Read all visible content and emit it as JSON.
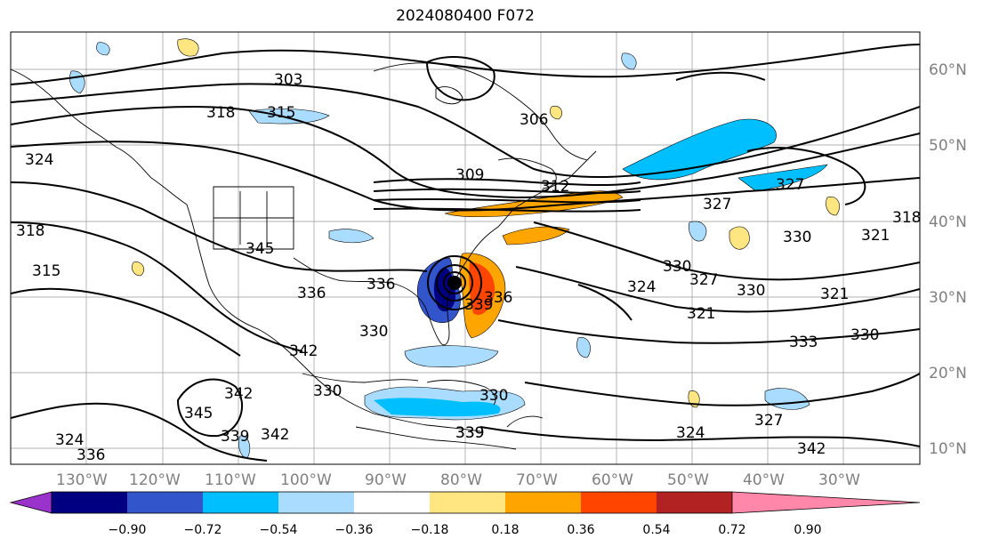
{
  "title": "2024080400 F072",
  "lat_labels": [
    "60°N",
    "50°N",
    "40°N",
    "30°N",
    "20°N",
    "10°N"
  ],
  "lon_labels": [
    "130°W",
    "120°W",
    "110°W",
    "100°W",
    "90°W",
    "80°W",
    "70°W",
    "60°W",
    "50°W",
    "40°W",
    "30°W"
  ],
  "contour_labels": [
    "303",
    "318",
    "315",
    "306",
    "309",
    "312",
    "327",
    "327",
    "318",
    "321",
    "324",
    "318",
    "315",
    "345",
    "336",
    "330",
    "330",
    "330",
    "324",
    "327",
    "339",
    "330",
    "321",
    "321",
    "333",
    "330",
    "342",
    "345",
    "342",
    "339",
    "342",
    "339",
    "336",
    "330",
    "327",
    "324",
    "342",
    "339",
    "336",
    "336",
    "330",
    "324"
  ],
  "colorbar": {
    "ticks": [
      "−0.90",
      "−0.72",
      "−0.54",
      "−0.36",
      "−0.18",
      "0.18",
      "0.36",
      "0.54",
      "0.72",
      "0.90"
    ],
    "colors": [
      "#9933cc",
      "#000080",
      "#3355cc",
      "#00bfff",
      "#aadcff",
      "#ffffff",
      "#ffe680",
      "#ffa500",
      "#ff4500",
      "#b22222",
      "#ff88aa"
    ]
  }
}
